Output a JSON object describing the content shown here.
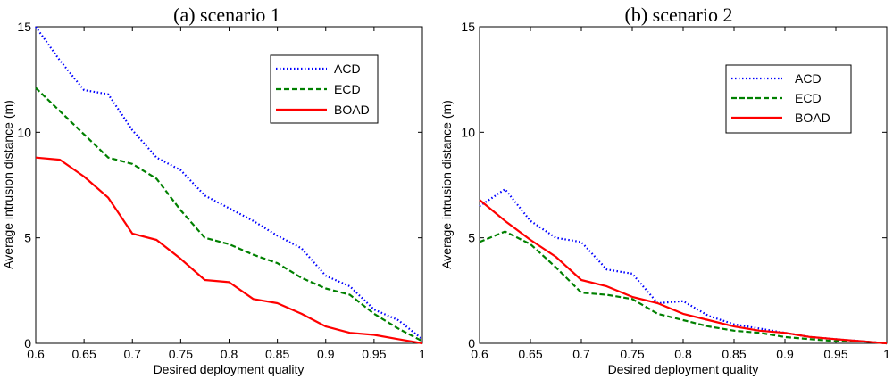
{
  "chart_data": [
    {
      "type": "line",
      "title": "(a) scenario 1",
      "xlabel": "Desired deployment quality",
      "ylabel": "Average intrusion distance (m)",
      "xlim": [
        0.6,
        1.0
      ],
      "ylim": [
        0,
        15
      ],
      "xticks": [
        "0.6",
        "0.65",
        "0.7",
        "0.75",
        "0.8",
        "0.85",
        "0.9",
        "0.95",
        "1"
      ],
      "yticks": [
        "0",
        "5",
        "10",
        "15"
      ],
      "legend_position": "top-right",
      "x": [
        0.6,
        0.625,
        0.65,
        0.675,
        0.7,
        0.725,
        0.75,
        0.775,
        0.8,
        0.825,
        0.85,
        0.875,
        0.9,
        0.925,
        0.95,
        0.975,
        1.0
      ],
      "series": [
        {
          "name": "ACD",
          "color": "#0000ff",
          "style": "dotted",
          "values": [
            15.0,
            13.4,
            12.0,
            11.8,
            10.1,
            8.8,
            8.2,
            7.0,
            6.4,
            5.8,
            5.1,
            4.5,
            3.2,
            2.7,
            1.6,
            1.1,
            0.2
          ]
        },
        {
          "name": "ECD",
          "color": "#008000",
          "style": "dashed",
          "values": [
            12.1,
            11.0,
            9.9,
            8.8,
            8.5,
            7.8,
            6.3,
            5.0,
            4.7,
            4.2,
            3.8,
            3.1,
            2.6,
            2.3,
            1.4,
            0.7,
            0.1
          ]
        },
        {
          "name": "BOAD",
          "color": "#ff0000",
          "style": "solid",
          "values": [
            8.8,
            8.7,
            7.9,
            6.9,
            5.2,
            4.9,
            4.0,
            3.0,
            2.9,
            2.1,
            1.9,
            1.4,
            0.8,
            0.5,
            0.4,
            0.2,
            0.0
          ]
        }
      ]
    },
    {
      "type": "line",
      "title": "(b) scenario 2",
      "xlabel": "Desired deployment quality",
      "ylabel": "Average intrusion distance (m)",
      "xlim": [
        0.6,
        1.0
      ],
      "ylim": [
        0,
        15
      ],
      "xticks": [
        "0.6",
        "0.65",
        "0.7",
        "0.75",
        "0.8",
        "0.85",
        "0.9",
        "0.95",
        "1"
      ],
      "yticks": [
        "0",
        "5",
        "10",
        "15"
      ],
      "legend_position": "top-right",
      "x": [
        0.6,
        0.625,
        0.65,
        0.675,
        0.7,
        0.725,
        0.75,
        0.775,
        0.8,
        0.825,
        0.85,
        0.875,
        0.9,
        0.925,
        0.95,
        0.975,
        1.0
      ],
      "series": [
        {
          "name": "ACD",
          "color": "#0000ff",
          "style": "dotted",
          "values": [
            6.5,
            7.3,
            5.8,
            5.0,
            4.8,
            3.5,
            3.3,
            1.9,
            2.0,
            1.3,
            0.9,
            0.7,
            0.5,
            0.3,
            0.2,
            0.1,
            0.0
          ]
        },
        {
          "name": "ECD",
          "color": "#008000",
          "style": "dashed",
          "values": [
            4.8,
            5.3,
            4.7,
            3.6,
            2.4,
            2.3,
            2.1,
            1.4,
            1.1,
            0.8,
            0.6,
            0.5,
            0.3,
            0.2,
            0.1,
            0.1,
            0.0
          ]
        },
        {
          "name": "BOAD",
          "color": "#ff0000",
          "style": "solid",
          "values": [
            6.8,
            5.8,
            4.9,
            4.1,
            3.0,
            2.7,
            2.2,
            1.9,
            1.4,
            1.1,
            0.8,
            0.6,
            0.5,
            0.3,
            0.2,
            0.1,
            0.0
          ]
        }
      ]
    }
  ]
}
